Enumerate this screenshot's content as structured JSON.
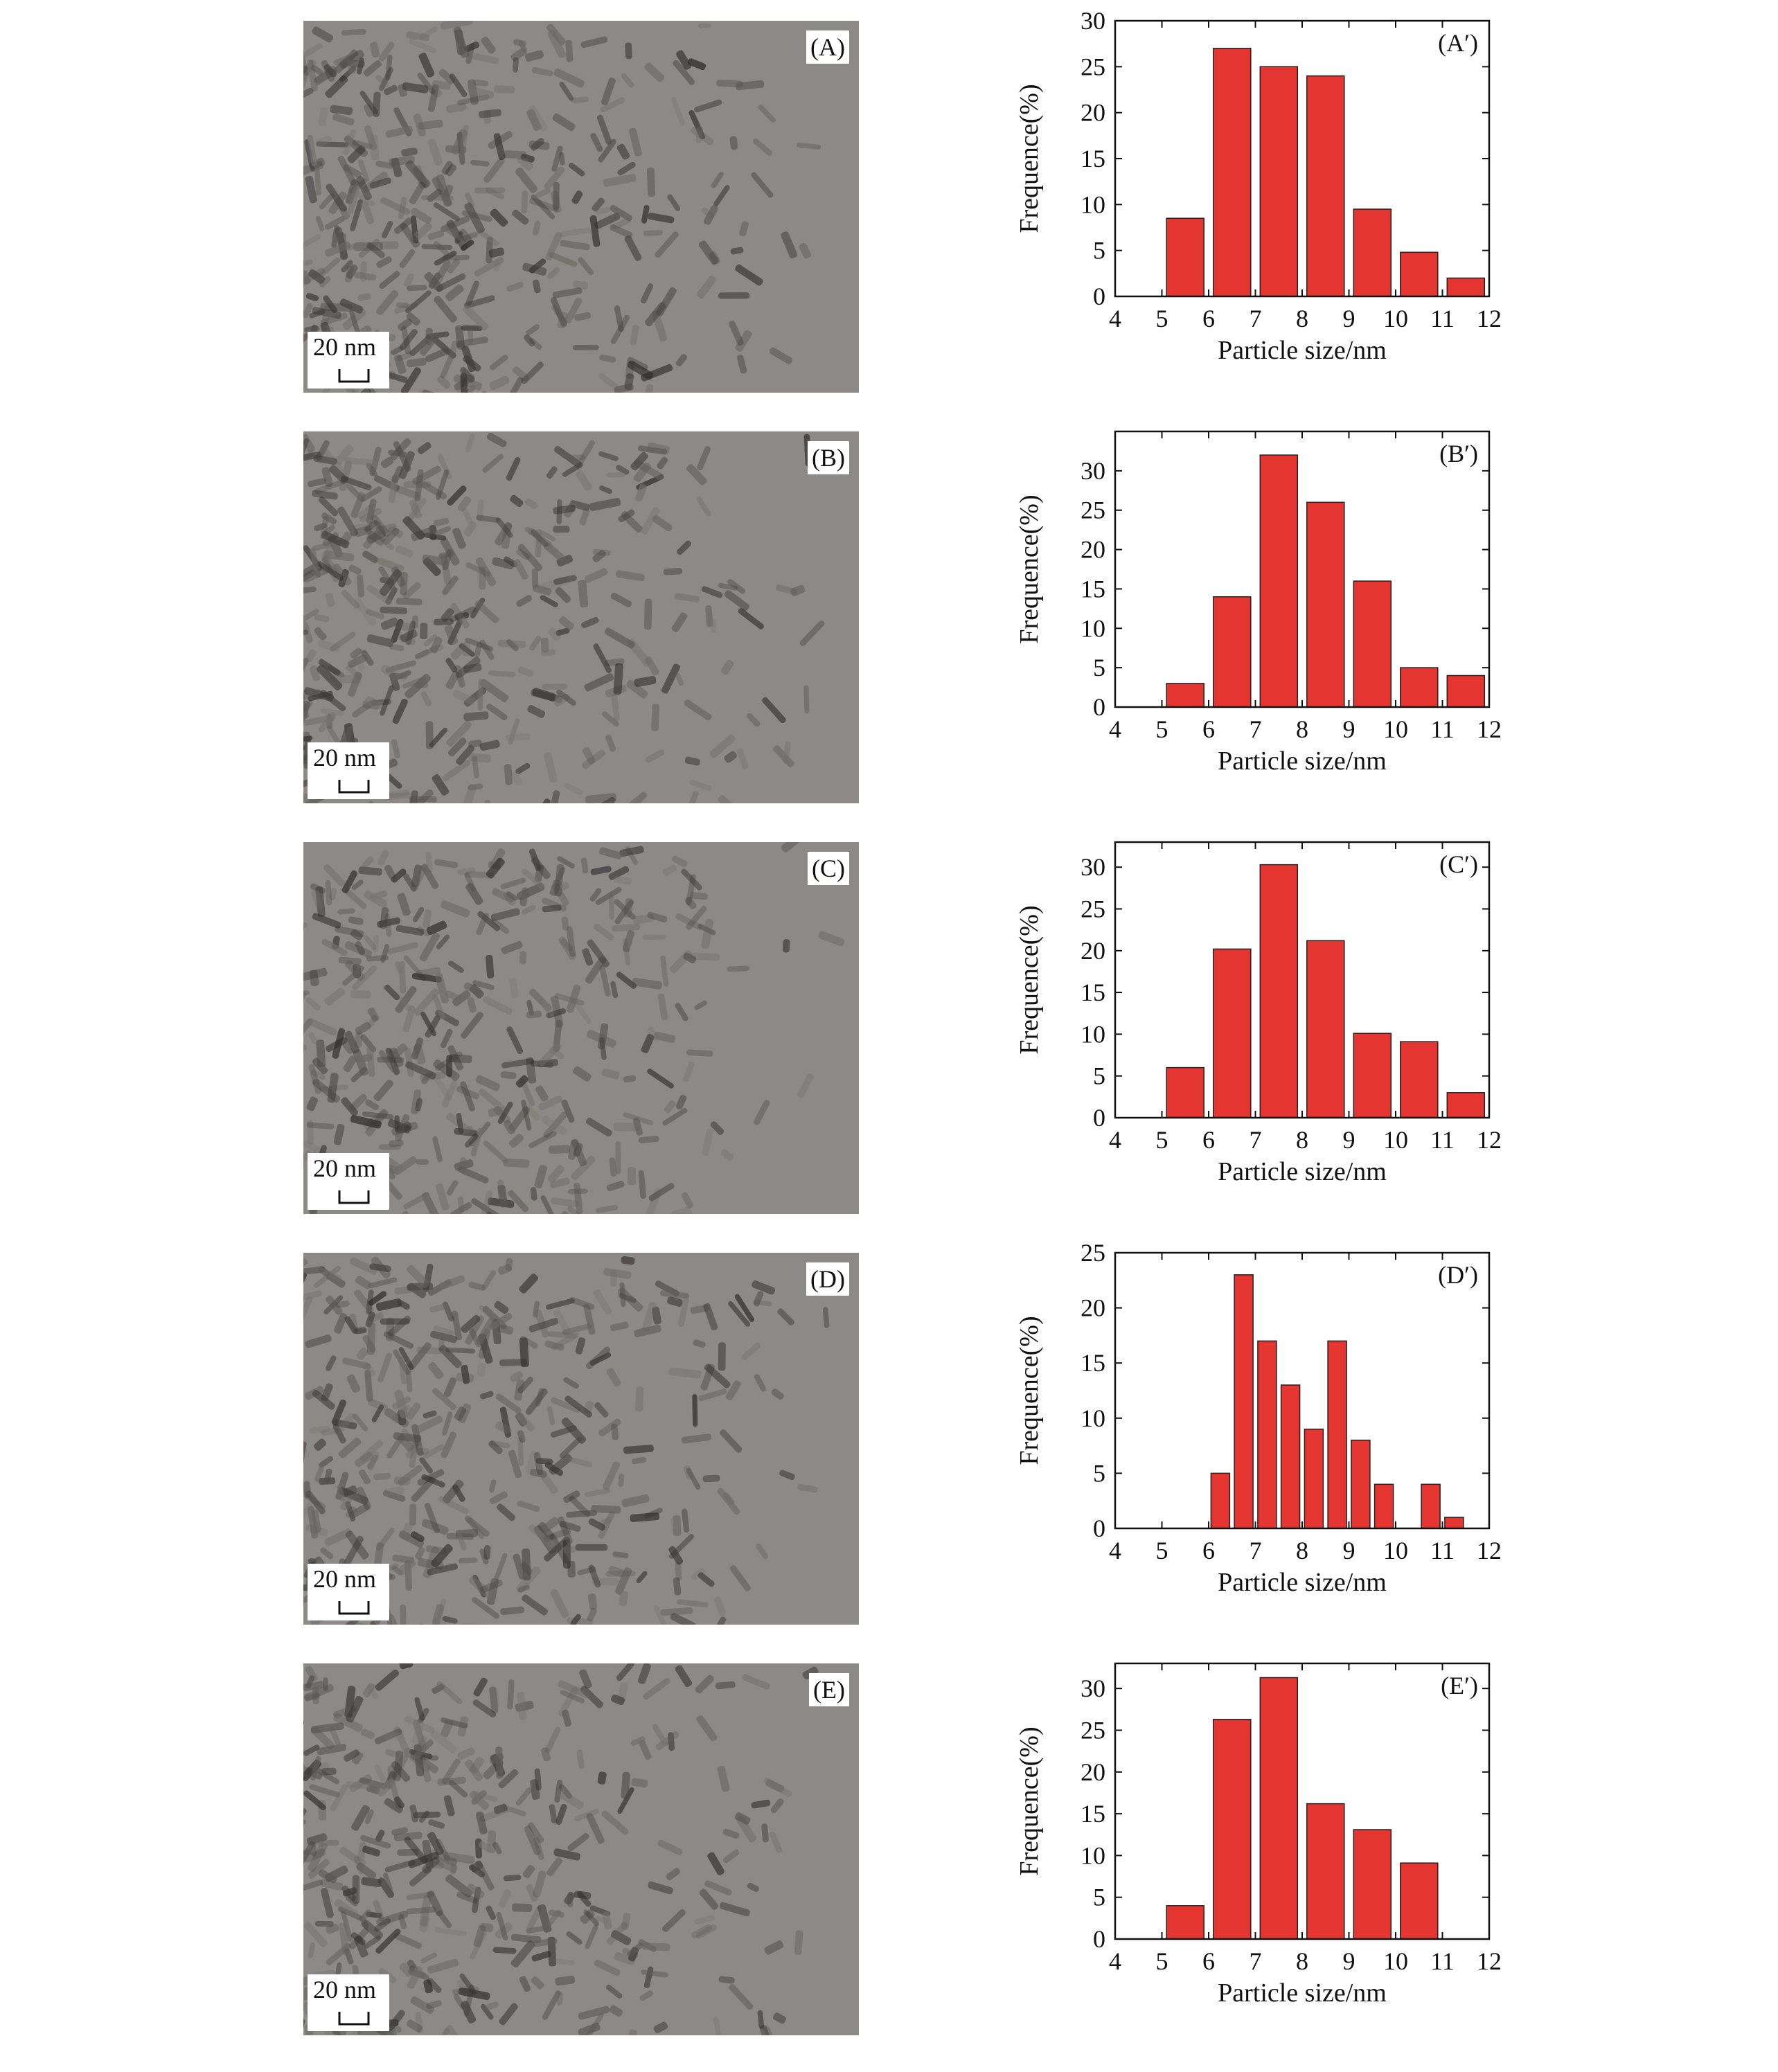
{
  "figure": {
    "panels": [
      {
        "image_label": "(A)",
        "scale_label": "20 nm",
        "chart_label": "(A′)"
      },
      {
        "image_label": "(B)",
        "scale_label": "20 nm",
        "chart_label": "(B′)"
      },
      {
        "image_label": "(C)",
        "scale_label": "20 nm",
        "chart_label": "(C′)"
      },
      {
        "image_label": "(D)",
        "scale_label": "20 nm",
        "chart_label": "(D′)"
      },
      {
        "image_label": "(E)",
        "scale_label": "20 nm",
        "chart_label": "(E′)"
      }
    ]
  },
  "colors": {
    "bar_fill": "#e53530",
    "bar_stroke": "#222222"
  },
  "chart_data": [
    {
      "type": "bar",
      "panel": "(A′)",
      "xlabel": "Particle size/nm",
      "ylabel": "Frequence(%)",
      "xlim": [
        4,
        12
      ],
      "ylim": [
        0,
        30
      ],
      "xticks": [
        4,
        5,
        6,
        7,
        8,
        9,
        10,
        11,
        12
      ],
      "yticks": [
        0,
        5,
        10,
        15,
        20,
        25,
        30
      ],
      "bin_width": 0.8,
      "x": [
        5.5,
        6.5,
        7.5,
        8.5,
        9.5,
        10.5,
        11.5
      ],
      "values": [
        8.5,
        27,
        25,
        24,
        9.5,
        4.8,
        2
      ]
    },
    {
      "type": "bar",
      "panel": "(B′)",
      "xlabel": "Particle size/nm",
      "ylabel": "Frequence(%)",
      "xlim": [
        4,
        12
      ],
      "ylim": [
        0,
        35
      ],
      "xticks": [
        4,
        5,
        6,
        7,
        8,
        9,
        10,
        11,
        12
      ],
      "yticks": [
        0,
        5,
        10,
        15,
        20,
        25,
        30
      ],
      "bin_width": 0.8,
      "x": [
        5.5,
        6.5,
        7.5,
        8.5,
        9.5,
        10.5,
        11.5
      ],
      "values": [
        3,
        14,
        32,
        26,
        16,
        5,
        4
      ]
    },
    {
      "type": "bar",
      "panel": "(C′)",
      "xlabel": "Particle size/nm",
      "ylabel": "Frequence(%)",
      "xlim": [
        4,
        12
      ],
      "ylim": [
        0,
        33
      ],
      "xticks": [
        4,
        5,
        6,
        7,
        8,
        9,
        10,
        11,
        12
      ],
      "yticks": [
        0,
        5,
        10,
        15,
        20,
        25,
        30
      ],
      "bin_width": 0.8,
      "x": [
        5.5,
        6.5,
        7.5,
        8.5,
        9.5,
        10.5,
        11.5
      ],
      "values": [
        6,
        20.2,
        30.3,
        21.2,
        10.1,
        9.1,
        3
      ]
    },
    {
      "type": "bar",
      "panel": "(D′)",
      "xlabel": "Particle size/nm",
      "ylabel": "Frequence(%)",
      "xlim": [
        4,
        12
      ],
      "ylim": [
        0,
        25
      ],
      "xticks": [
        4,
        5,
        6,
        7,
        8,
        9,
        10,
        11,
        12
      ],
      "yticks": [
        0,
        5,
        10,
        15,
        20,
        25
      ],
      "bin_width": 0.4,
      "x": [
        6.25,
        6.75,
        7.25,
        7.75,
        8.25,
        8.75,
        9.25,
        9.75,
        10.25,
        10.75,
        11.25
      ],
      "values": [
        5,
        23,
        17,
        13,
        9,
        17,
        8,
        4,
        0,
        4,
        1
      ]
    },
    {
      "type": "bar",
      "panel": "(E′)",
      "xlabel": "Particle size/nm",
      "ylabel": "Frequence(%)",
      "xlim": [
        4,
        12
      ],
      "ylim": [
        0,
        33
      ],
      "xticks": [
        4,
        5,
        6,
        7,
        8,
        9,
        10,
        11,
        12
      ],
      "yticks": [
        0,
        5,
        10,
        15,
        20,
        25,
        30
      ],
      "bin_width": 0.8,
      "x": [
        5.5,
        6.5,
        7.5,
        8.5,
        9.5,
        10.5
      ],
      "values": [
        4,
        26.3,
        31.3,
        16.2,
        13.1,
        9.1
      ]
    }
  ]
}
